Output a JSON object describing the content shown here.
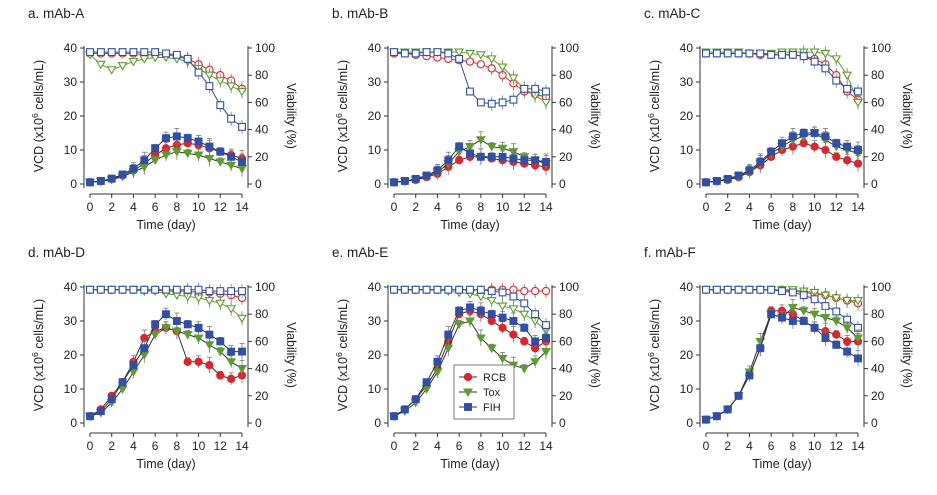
{
  "colors": {
    "RCB": "#e0242b",
    "Tox": "#5c9e2c",
    "FIH": "#2f4fa8",
    "axis": "#333333",
    "errorbar": "#777777"
  },
  "legend": [
    {
      "name": "RCB",
      "color": "#e0242b",
      "marker": "circle"
    },
    {
      "name": "Tox",
      "color": "#5c9e2c",
      "marker": "triangle-down"
    },
    {
      "name": "FIH",
      "color": "#2f4fa8",
      "marker": "square"
    }
  ],
  "chart_data": [
    {
      "type": "line",
      "title": "a. mAb-A",
      "xlabel": "Time (day)",
      "ylabel": "VCD (x10^6 cells/mL)",
      "y2label": "Viability (%)",
      "xlim": [
        0,
        14
      ],
      "ylim": [
        0,
        40
      ],
      "y2lim": [
        0,
        100
      ],
      "xticks": [
        "0",
        "2",
        "4",
        "6",
        "8",
        "10",
        "12",
        "14"
      ],
      "yticks": [
        "0",
        "10",
        "20",
        "30",
        "40"
      ],
      "y2ticks": [
        "0",
        "20",
        "40",
        "60",
        "80",
        "100"
      ],
      "x": [
        0,
        1,
        2,
        3,
        4,
        5,
        6,
        7,
        8,
        9,
        10,
        11,
        12,
        13,
        14
      ],
      "vcd": [
        {
          "name": "RCB",
          "values": [
            0.5,
            0.8,
            1.5,
            2.5,
            4,
            6,
            8.5,
            10.5,
            11.5,
            12,
            11.5,
            10.5,
            9.5,
            8.5,
            7.5
          ]
        },
        {
          "name": "Tox",
          "values": [
            0.5,
            0.8,
            1.3,
            2.2,
            3.5,
            5,
            7,
            8.5,
            9.5,
            9,
            8.5,
            7.5,
            6.5,
            5.5,
            4.5
          ]
        },
        {
          "name": "FIH",
          "values": [
            0.5,
            0.9,
            1.6,
            2.8,
            4.5,
            7,
            10.5,
            13.5,
            14,
            13.5,
            12.5,
            11,
            9.5,
            8,
            6.5
          ]
        }
      ],
      "viability": [
        {
          "name": "RCB",
          "values": [
            96,
            96,
            96,
            96,
            96,
            95,
            95,
            95,
            94,
            92,
            88,
            84,
            80,
            76,
            70
          ]
        },
        {
          "name": "Tox",
          "values": [
            95,
            88,
            84,
            87,
            90,
            92,
            93,
            93,
            92,
            90,
            85,
            80,
            76,
            72,
            68
          ]
        },
        {
          "name": "FIH",
          "values": [
            97,
            97,
            97,
            97,
            97,
            97,
            97,
            96,
            95,
            92,
            82,
            72,
            58,
            48,
            42
          ]
        }
      ]
    },
    {
      "type": "line",
      "title": "b. mAb-B",
      "xlabel": "Time (day)",
      "ylabel": "VCD (x10^6 cells/mL)",
      "y2label": "Viability (%)",
      "xlim": [
        0,
        14
      ],
      "ylim": [
        0,
        40
      ],
      "y2lim": [
        0,
        100
      ],
      "xticks": [
        "0",
        "2",
        "4",
        "6",
        "8",
        "10",
        "12",
        "14"
      ],
      "yticks": [
        "0",
        "10",
        "20",
        "30",
        "40"
      ],
      "y2ticks": [
        "0",
        "20",
        "40",
        "60",
        "80",
        "100"
      ],
      "x": [
        0,
        1,
        2,
        3,
        4,
        5,
        6,
        7,
        8,
        9,
        10,
        11,
        12,
        13,
        14
      ],
      "vcd": [
        {
          "name": "RCB",
          "values": [
            0.5,
            0.8,
            1.2,
            2,
            3,
            5,
            7,
            8,
            8,
            7.5,
            7,
            6.5,
            6,
            5.5,
            5
          ]
        },
        {
          "name": "Tox",
          "values": [
            0.5,
            0.8,
            1.3,
            2.2,
            3.5,
            6,
            9.5,
            11,
            13,
            11,
            10.5,
            9.5,
            8,
            7,
            6
          ]
        },
        {
          "name": "FIH",
          "values": [
            0.5,
            0.9,
            1.5,
            2.5,
            4,
            7,
            11,
            9,
            8,
            8,
            8,
            7.5,
            7,
            7,
            6.5
          ]
        }
      ],
      "viability": [
        {
          "name": "RCB",
          "values": [
            96,
            96,
            95,
            94,
            93,
            92,
            91,
            90,
            88,
            85,
            80,
            74,
            68,
            66,
            64
          ]
        },
        {
          "name": "Tox",
          "values": [
            97,
            97,
            97,
            97,
            97,
            97,
            97,
            96,
            95,
            92,
            86,
            78,
            70,
            65,
            60
          ]
        },
        {
          "name": "FIH",
          "values": [
            97,
            96,
            96,
            97,
            97,
            96,
            92,
            68,
            60,
            59,
            60,
            62,
            70,
            70,
            68
          ]
        }
      ]
    },
    {
      "type": "line",
      "title": "c. mAb-C",
      "xlabel": "Time (day)",
      "ylabel": "VCD (x10^6 cells/mL)",
      "y2label": "Viability (%)",
      "xlim": [
        0,
        14
      ],
      "ylim": [
        0,
        40
      ],
      "y2lim": [
        0,
        100
      ],
      "xticks": [
        "0",
        "2",
        "4",
        "6",
        "8",
        "10",
        "12",
        "14"
      ],
      "yticks": [
        "0",
        "10",
        "20",
        "30",
        "40"
      ],
      "y2ticks": [
        "0",
        "20",
        "40",
        "60",
        "80",
        "100"
      ],
      "x": [
        0,
        1,
        2,
        3,
        4,
        5,
        6,
        7,
        8,
        9,
        10,
        11,
        12,
        13,
        14
      ],
      "vcd": [
        {
          "name": "RCB",
          "values": [
            0.5,
            0.8,
            1.2,
            2,
            3.5,
            5.5,
            8,
            10,
            11,
            12,
            11,
            10,
            8,
            7,
            6
          ]
        },
        {
          "name": "Tox",
          "values": [
            0.5,
            0.8,
            1.3,
            2.2,
            3.6,
            6,
            9,
            11,
            13,
            14,
            15,
            13,
            11,
            10,
            9
          ]
        },
        {
          "name": "FIH",
          "values": [
            0.5,
            0.9,
            1.5,
            2.5,
            4,
            6.5,
            9.5,
            12,
            14,
            15,
            15,
            14,
            12,
            11,
            10
          ]
        }
      ],
      "viability": [
        {
          "name": "RCB",
          "values": [
            96,
            96,
            96,
            96,
            96,
            95,
            95,
            95,
            95,
            94,
            92,
            88,
            80,
            68,
            62
          ]
        },
        {
          "name": "Tox",
          "values": [
            97,
            97,
            97,
            97,
            96,
            96,
            96,
            97,
            97,
            97,
            97,
            96,
            92,
            80,
            60
          ]
        },
        {
          "name": "FIH",
          "values": [
            96,
            96,
            96,
            96,
            96,
            96,
            95,
            95,
            95,
            94,
            90,
            85,
            76,
            70,
            68
          ]
        }
      ]
    },
    {
      "type": "line",
      "title": "d. mAb-D",
      "xlabel": "Time (day)",
      "ylabel": "VCD (x10^6 cells/mL)",
      "y2label": "Viability (%)",
      "xlim": [
        0,
        14
      ],
      "ylim": [
        0,
        40
      ],
      "y2lim": [
        0,
        100
      ],
      "xticks": [
        "0",
        "2",
        "4",
        "6",
        "8",
        "10",
        "12",
        "14"
      ],
      "yticks": [
        "0",
        "10",
        "20",
        "30",
        "40"
      ],
      "y2ticks": [
        "0",
        "20",
        "40",
        "60",
        "80",
        "100"
      ],
      "x": [
        0,
        1,
        2,
        3,
        4,
        5,
        6,
        7,
        8,
        9,
        10,
        11,
        12,
        13,
        14
      ],
      "vcd": [
        {
          "name": "RCB",
          "values": [
            2,
            4,
            8,
            12,
            18,
            25,
            27,
            28,
            27,
            18,
            18,
            17,
            14,
            13,
            14
          ]
        },
        {
          "name": "Tox",
          "values": [
            2,
            3,
            6,
            10,
            15,
            20,
            26,
            28,
            27,
            26,
            25,
            23,
            21,
            18,
            16
          ]
        },
        {
          "name": "FIH",
          "values": [
            2,
            3.5,
            7,
            12,
            17,
            22,
            29,
            32,
            30,
            29,
            28,
            26,
            24,
            21,
            21
          ]
        }
      ],
      "viability": [
        {
          "name": "RCB",
          "values": [
            98,
            98,
            98,
            98,
            98,
            98,
            98,
            97,
            97,
            97,
            96,
            96,
            95,
            94,
            92
          ]
        },
        {
          "name": "Tox",
          "values": [
            98,
            98,
            98,
            98,
            98,
            97,
            97,
            95,
            94,
            93,
            92,
            90,
            88,
            84,
            77
          ]
        },
        {
          "name": "FIH",
          "values": [
            98,
            98,
            98,
            98,
            98,
            98,
            98,
            98,
            98,
            98,
            98,
            97,
            97,
            97,
            97
          ]
        }
      ]
    },
    {
      "type": "line",
      "title": "e. mAb-E",
      "xlabel": "Time (day)",
      "ylabel": "VCD (x10^6 cells/mL)",
      "y2label": "Viability (%)",
      "xlim": [
        0,
        14
      ],
      "ylim": [
        0,
        40
      ],
      "y2lim": [
        0,
        100
      ],
      "xticks": [
        "0",
        "2",
        "4",
        "6",
        "8",
        "10",
        "12",
        "14"
      ],
      "yticks": [
        "0",
        "10",
        "20",
        "30",
        "40"
      ],
      "y2ticks": [
        "0",
        "20",
        "40",
        "60",
        "80",
        "100"
      ],
      "x": [
        0,
        1,
        2,
        3,
        4,
        5,
        6,
        7,
        8,
        9,
        10,
        11,
        12,
        13,
        14
      ],
      "vcd": [
        {
          "name": "RCB",
          "values": [
            2,
            4,
            7,
            11,
            16,
            24,
            32,
            33,
            32,
            30,
            28,
            26,
            24,
            22,
            24
          ]
        },
        {
          "name": "Tox",
          "values": [
            2,
            3.5,
            6,
            10,
            15,
            22,
            29,
            30,
            25,
            22,
            19,
            17,
            16,
            18,
            21
          ]
        },
        {
          "name": "FIH",
          "values": [
            2,
            4,
            7,
            12,
            18,
            26,
            33,
            34,
            33,
            32,
            31,
            30,
            28,
            24,
            25
          ]
        }
      ],
      "viability": [
        {
          "name": "RCB",
          "values": [
            98,
            98,
            98,
            98,
            98,
            98,
            98,
            98,
            98,
            98,
            98,
            98,
            97,
            97,
            97
          ]
        },
        {
          "name": "Tox",
          "values": [
            98,
            98,
            98,
            98,
            98,
            97,
            96,
            95,
            93,
            90,
            86,
            84,
            80,
            75,
            68
          ]
        },
        {
          "name": "FIH",
          "values": [
            98,
            98,
            98,
            98,
            98,
            98,
            98,
            98,
            98,
            97,
            96,
            93,
            88,
            80,
            72
          ]
        }
      ]
    },
    {
      "type": "line",
      "title": "f. mAb-F",
      "xlabel": "Time (day)",
      "ylabel": "VCD (x10^6 cells/mL)",
      "y2label": "Viability (%)",
      "xlim": [
        0,
        14
      ],
      "ylim": [
        0,
        40
      ],
      "y2lim": [
        0,
        100
      ],
      "xticks": [
        "0",
        "2",
        "4",
        "6",
        "8",
        "10",
        "12",
        "14"
      ],
      "yticks": [
        "0",
        "10",
        "20",
        "30",
        "40"
      ],
      "y2ticks": [
        "0",
        "20",
        "40",
        "60",
        "80",
        "100"
      ],
      "x": [
        0,
        1,
        2,
        3,
        4,
        5,
        6,
        7,
        8,
        9,
        10,
        11,
        12,
        13,
        14
      ],
      "vcd": [
        {
          "name": "RCB",
          "values": [
            1,
            2,
            4,
            8,
            14,
            22,
            33,
            33,
            32,
            30,
            28,
            27,
            26,
            24,
            24
          ]
        },
        {
          "name": "Tox",
          "values": [
            1,
            2,
            4,
            8,
            15,
            24,
            32,
            31,
            34,
            33,
            32,
            31,
            30,
            28,
            25
          ]
        },
        {
          "name": "FIH",
          "values": [
            1,
            2,
            4,
            8,
            14,
            22,
            32,
            31,
            30,
            30,
            28,
            25,
            23,
            21,
            19
          ]
        }
      ],
      "viability": [
        {
          "name": "RCB",
          "values": [
            98,
            98,
            98,
            98,
            98,
            98,
            98,
            98,
            97,
            96,
            95,
            94,
            92,
            90,
            88
          ]
        },
        {
          "name": "Tox",
          "values": [
            98,
            98,
            98,
            98,
            98,
            98,
            98,
            98,
            98,
            97,
            96,
            94,
            92,
            90,
            90
          ]
        },
        {
          "name": "FIH",
          "values": [
            98,
            98,
            98,
            98,
            98,
            98,
            98,
            97,
            96,
            94,
            91,
            86,
            82,
            76,
            70
          ]
        }
      ]
    }
  ]
}
